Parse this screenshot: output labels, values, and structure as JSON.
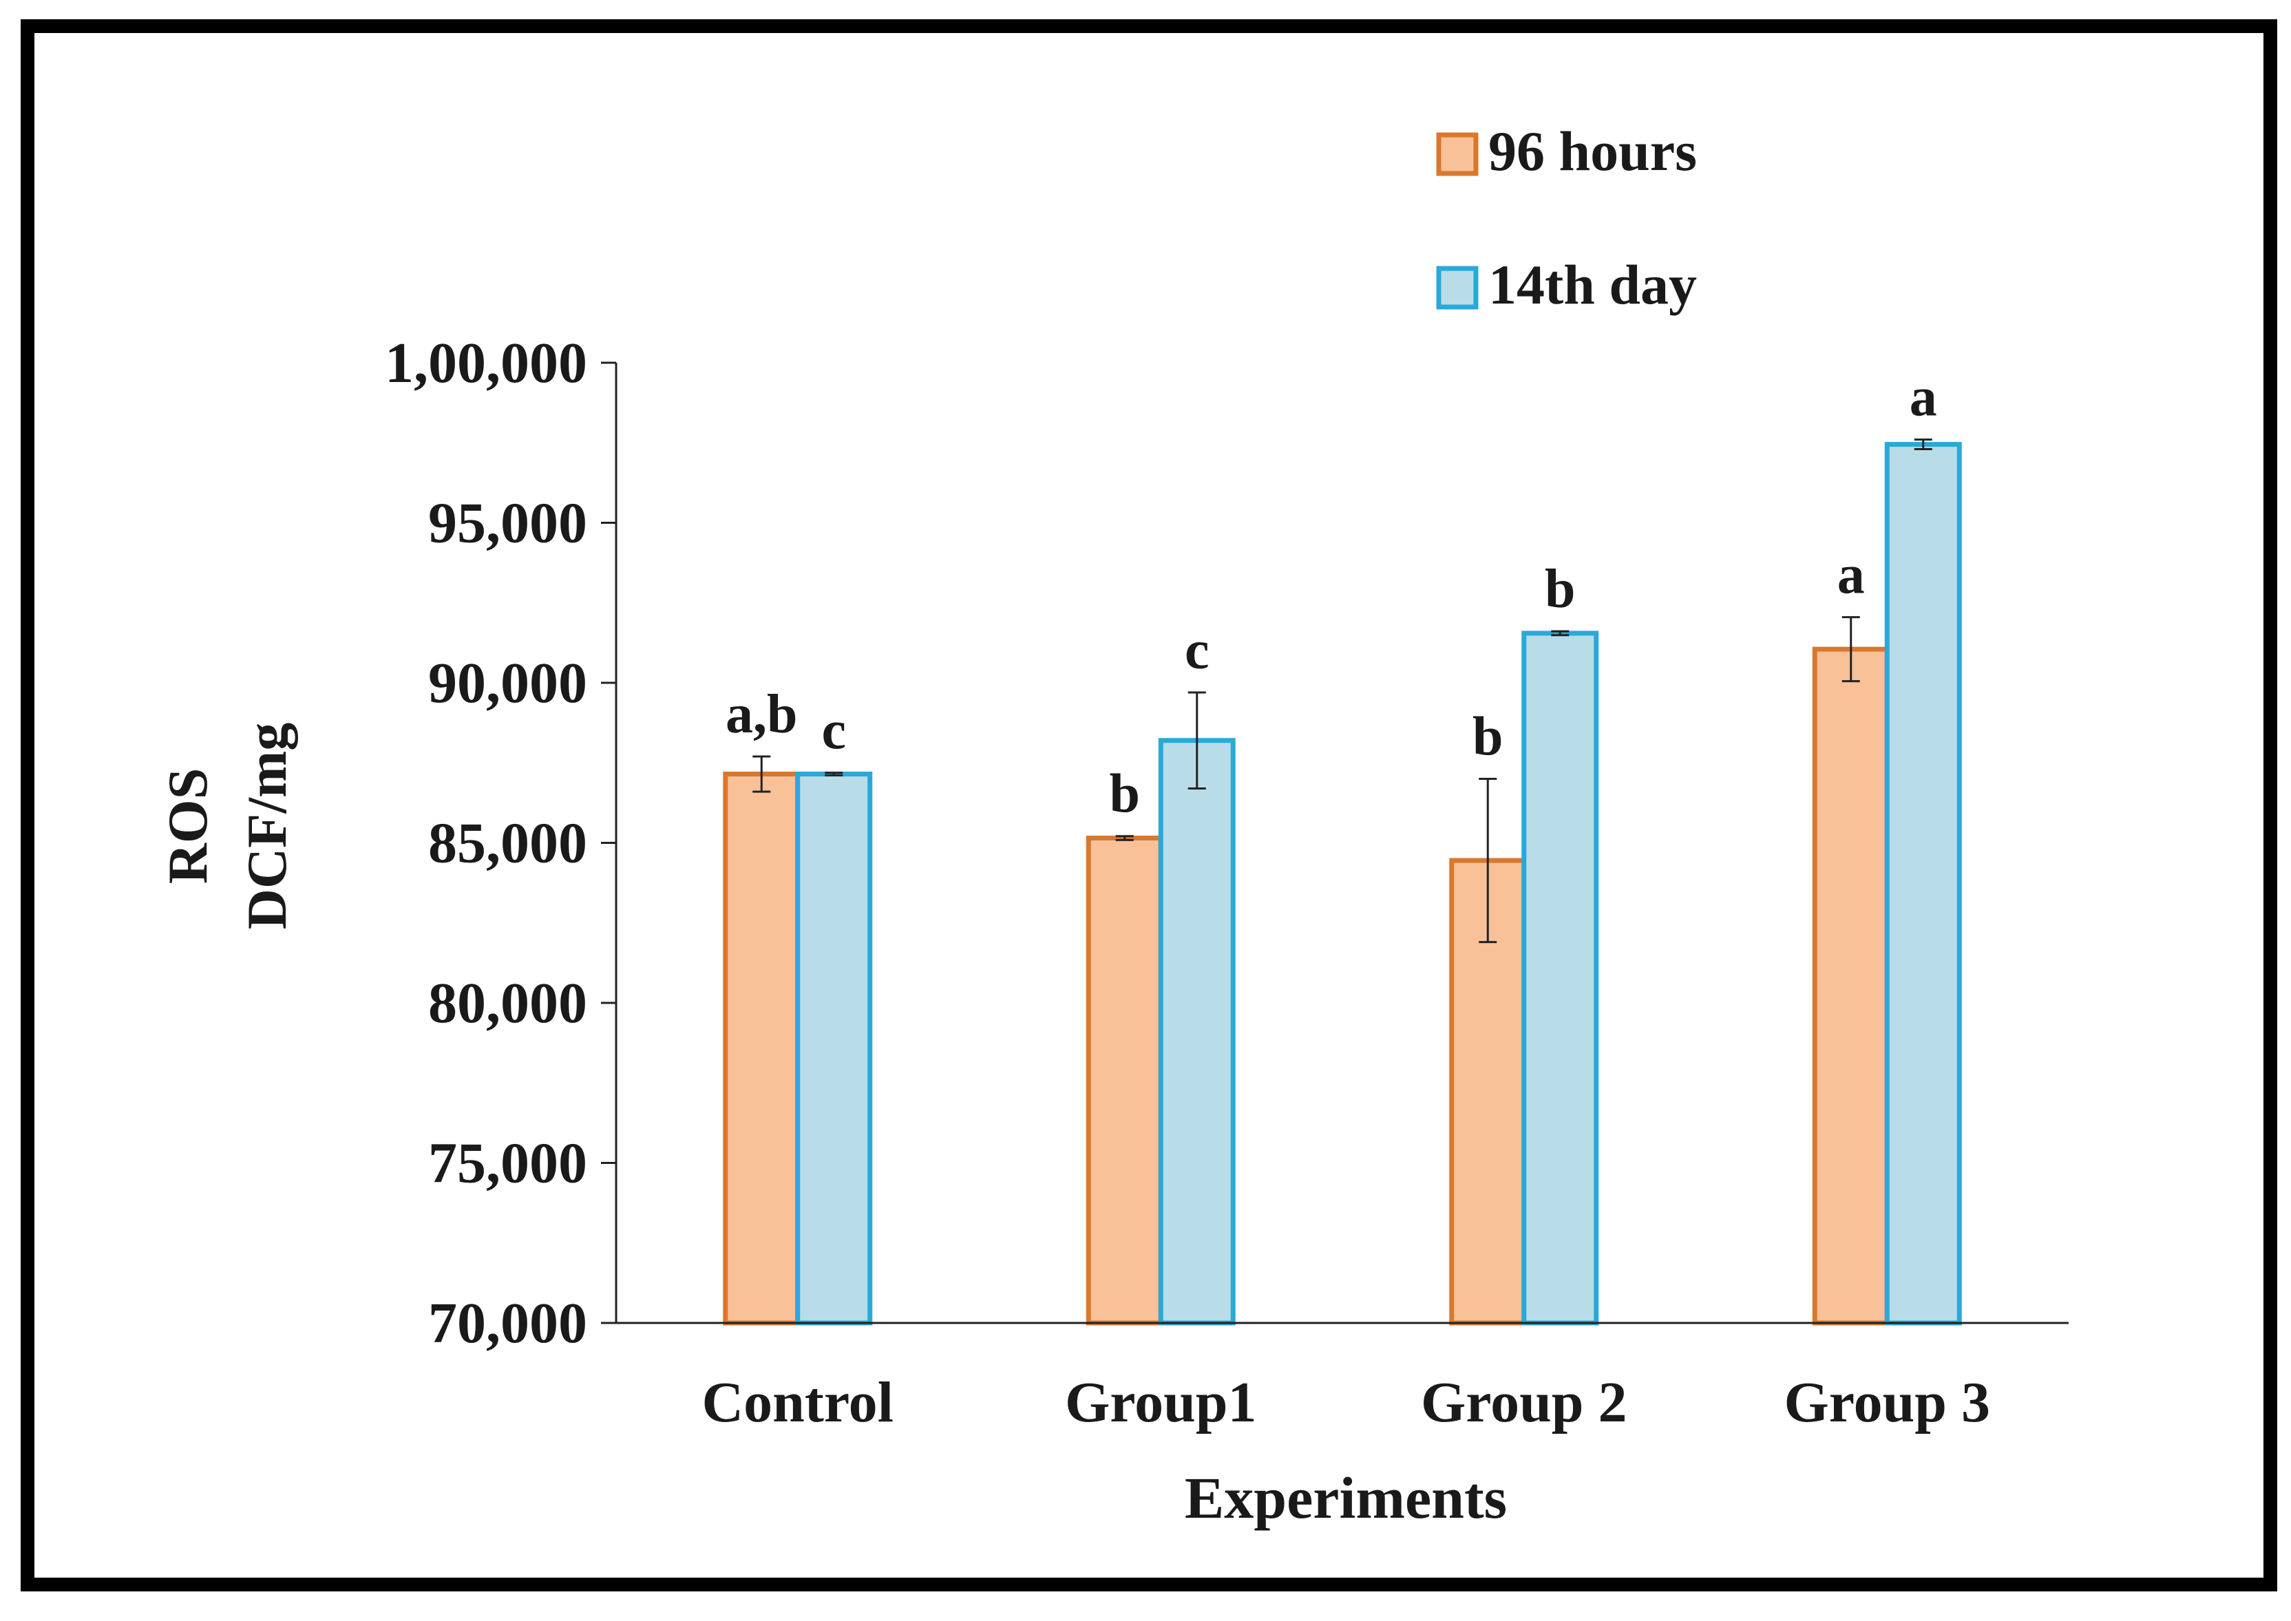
{
  "chart_data": {
    "type": "bar",
    "title": "",
    "xlabel": "Experiments",
    "ylabel_lines": [
      "ROS",
      "DCF/mg"
    ],
    "categories": [
      "Control",
      "Group1",
      "Group 2",
      "Group 3"
    ],
    "ylim": [
      70000,
      100000
    ],
    "yticks": [
      70000,
      75000,
      80000,
      85000,
      90000,
      95000,
      100000
    ],
    "ytick_labels": [
      "70,000",
      "75,000",
      "80,000",
      "85,000",
      "90,000",
      "95,000",
      "1,00,000"
    ],
    "grid": false,
    "legend_position": "top-right",
    "series": [
      {
        "name": "96 hours",
        "fill": "#f8c197",
        "stroke": "#d9782d",
        "values": [
          87150,
          85150,
          84450,
          91050
        ],
        "errors": [
          550,
          60,
          2550,
          1000
        ],
        "labels": [
          "a,b",
          "b",
          "b",
          "a"
        ]
      },
      {
        "name": "14th day",
        "fill": "#b8dde8",
        "stroke": "#29a9d9",
        "values": [
          87150,
          88200,
          91550,
          97450
        ],
        "errors": [
          40,
          1500,
          60,
          150
        ],
        "labels": [
          "c",
          "c",
          "b",
          "a"
        ]
      }
    ]
  },
  "colors": {
    "border": "#000000",
    "axis": "#222222",
    "text": "#1a1a1a"
  }
}
